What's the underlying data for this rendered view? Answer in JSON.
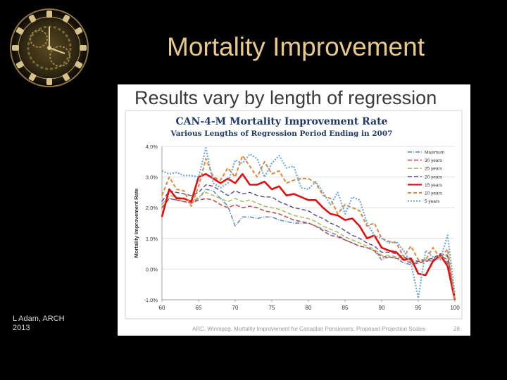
{
  "slide": {
    "title": "Mortality Improvement",
    "author_line1": "L Adam, ARCH",
    "author_line2": "2013"
  },
  "panel": {
    "heading": "Results vary by length of regression",
    "footer": "ARC, Winnipeg. Mortality Improvement for Canadian Pensioners: Proposed Projection Scales",
    "page_number": "28"
  },
  "chart_data": {
    "type": "line",
    "title": "CAN-4-M Mortality Improvement Rate",
    "subtitle": "Various Lengths of Regression Period Ending in 2007",
    "xlabel": "",
    "ylabel": "Mortality Improvement Rate",
    "xlim": [
      60,
      100
    ],
    "ylim": [
      -1.0,
      4.0
    ],
    "x_ticks": [
      "60",
      "65",
      "70",
      "75",
      "80",
      "85",
      "90",
      "95",
      "100"
    ],
    "y_ticks": [
      "-1.0%",
      "0.0%",
      "1.0%",
      "2.0%",
      "3.0%",
      "4.0%"
    ],
    "grid": "horizontal",
    "legend_position": "right",
    "x": [
      60,
      61,
      62,
      63,
      64,
      65,
      66,
      67,
      68,
      69,
      70,
      71,
      72,
      73,
      74,
      75,
      76,
      77,
      78,
      79,
      80,
      81,
      82,
      83,
      84,
      85,
      86,
      87,
      88,
      89,
      90,
      91,
      92,
      93,
      94,
      95,
      96,
      97,
      98,
      99,
      100
    ],
    "series": [
      {
        "name": "Maximum",
        "color": "#4f81bd",
        "dash": "6,2,1,2",
        "width": 1.4,
        "values": [
          2.0,
          2.3,
          2.25,
          2.2,
          2.15,
          2.3,
          2.6,
          2.55,
          2.3,
          2.05,
          1.4,
          1.7,
          1.7,
          1.65,
          1.7,
          1.7,
          1.6,
          1.55,
          1.5,
          1.5,
          1.5,
          1.4,
          1.3,
          1.2,
          1.1,
          0.95,
          0.85,
          0.75,
          0.7,
          0.6,
          0.3,
          0.4,
          0.35,
          0.2,
          0.15,
          0.2,
          0.3,
          0.25,
          0.5,
          0.2,
          -0.9
        ]
      },
      {
        "name": "30 years",
        "color": "#c0504d",
        "dash": "6,3",
        "width": 1.6,
        "values": [
          2.0,
          2.3,
          2.25,
          2.2,
          2.15,
          2.25,
          2.3,
          2.25,
          2.1,
          2.0,
          2.1,
          2.0,
          2.05,
          2.0,
          1.9,
          1.85,
          1.8,
          1.7,
          1.6,
          1.55,
          1.5,
          1.4,
          1.25,
          1.1,
          1.05,
          0.95,
          0.85,
          0.75,
          0.7,
          0.6,
          0.4,
          0.4,
          0.35,
          0.3,
          0.2,
          0.2,
          0.25,
          0.3,
          0.45,
          0.3,
          -0.9
        ]
      },
      {
        "name": "25 years",
        "color": "#9bbb59",
        "dash": "6,3",
        "width": 1.4,
        "values": [
          2.1,
          2.4,
          2.35,
          2.3,
          2.2,
          2.35,
          2.5,
          2.4,
          2.3,
          2.2,
          2.3,
          2.2,
          2.25,
          2.15,
          2.05,
          2.0,
          1.95,
          1.85,
          1.75,
          1.7,
          1.65,
          1.55,
          1.4,
          1.3,
          1.2,
          1.05,
          0.95,
          0.85,
          0.75,
          0.65,
          0.45,
          0.45,
          0.4,
          0.35,
          0.25,
          0.25,
          0.3,
          0.35,
          0.5,
          0.4,
          -0.9
        ]
      },
      {
        "name": "20 years",
        "color": "#5a4a8a",
        "dash": "6,3",
        "width": 1.4,
        "values": [
          2.2,
          2.55,
          2.5,
          2.45,
          2.4,
          2.5,
          2.75,
          2.7,
          2.55,
          2.4,
          2.55,
          2.45,
          2.5,
          2.4,
          2.35,
          2.35,
          2.2,
          2.1,
          2.0,
          1.95,
          1.9,
          1.75,
          1.65,
          1.5,
          1.4,
          1.25,
          1.1,
          1.0,
          0.85,
          0.75,
          0.55,
          0.55,
          0.5,
          0.4,
          0.3,
          0.25,
          0.3,
          0.35,
          0.5,
          0.45,
          -0.9
        ]
      },
      {
        "name": "15 years",
        "color": "#e01010",
        "dash": "",
        "width": 2.6,
        "values": [
          1.7,
          2.6,
          2.3,
          2.3,
          2.2,
          3.0,
          3.1,
          2.95,
          2.8,
          2.95,
          2.8,
          3.1,
          2.75,
          2.75,
          2.85,
          2.6,
          2.7,
          2.4,
          2.45,
          2.35,
          2.25,
          2.25,
          2.0,
          1.8,
          1.75,
          1.6,
          1.65,
          1.4,
          1.0,
          1.1,
          0.7,
          0.6,
          0.55,
          0.3,
          0.35,
          -0.15,
          -0.2,
          0.25,
          0.45,
          0.1,
          -1.0
        ]
      },
      {
        "name": "10 years",
        "color": "#e0853a",
        "dash": "5,3",
        "width": 2.0,
        "values": [
          2.4,
          3.0,
          2.6,
          2.55,
          2.05,
          2.7,
          3.6,
          3.0,
          2.9,
          3.3,
          3.0,
          3.7,
          3.35,
          3.0,
          3.5,
          3.1,
          3.2,
          2.8,
          2.9,
          2.95,
          2.95,
          2.8,
          2.4,
          2.3,
          1.8,
          2.1,
          2.0,
          1.9,
          1.4,
          1.5,
          1.0,
          0.9,
          0.85,
          0.4,
          0.75,
          0.3,
          0.3,
          0.7,
          0.35,
          0.65,
          -1.0
        ]
      },
      {
        "name": "5 years",
        "color": "#6fa8dc",
        "dash": "2,2",
        "width": 2.2,
        "values": [
          3.2,
          3.1,
          3.15,
          3.05,
          3.05,
          3.0,
          3.95,
          2.8,
          2.65,
          2.8,
          3.55,
          3.45,
          3.75,
          3.6,
          3.0,
          3.45,
          3.7,
          3.3,
          3.35,
          2.65,
          2.6,
          2.85,
          2.5,
          2.1,
          2.5,
          1.8,
          2.35,
          2.25,
          1.5,
          1.1,
          1.0,
          0.85,
          0.9,
          0.6,
          0.2,
          -0.95,
          0.6,
          0.4,
          0.3,
          1.1,
          -0.8
        ]
      }
    ]
  }
}
